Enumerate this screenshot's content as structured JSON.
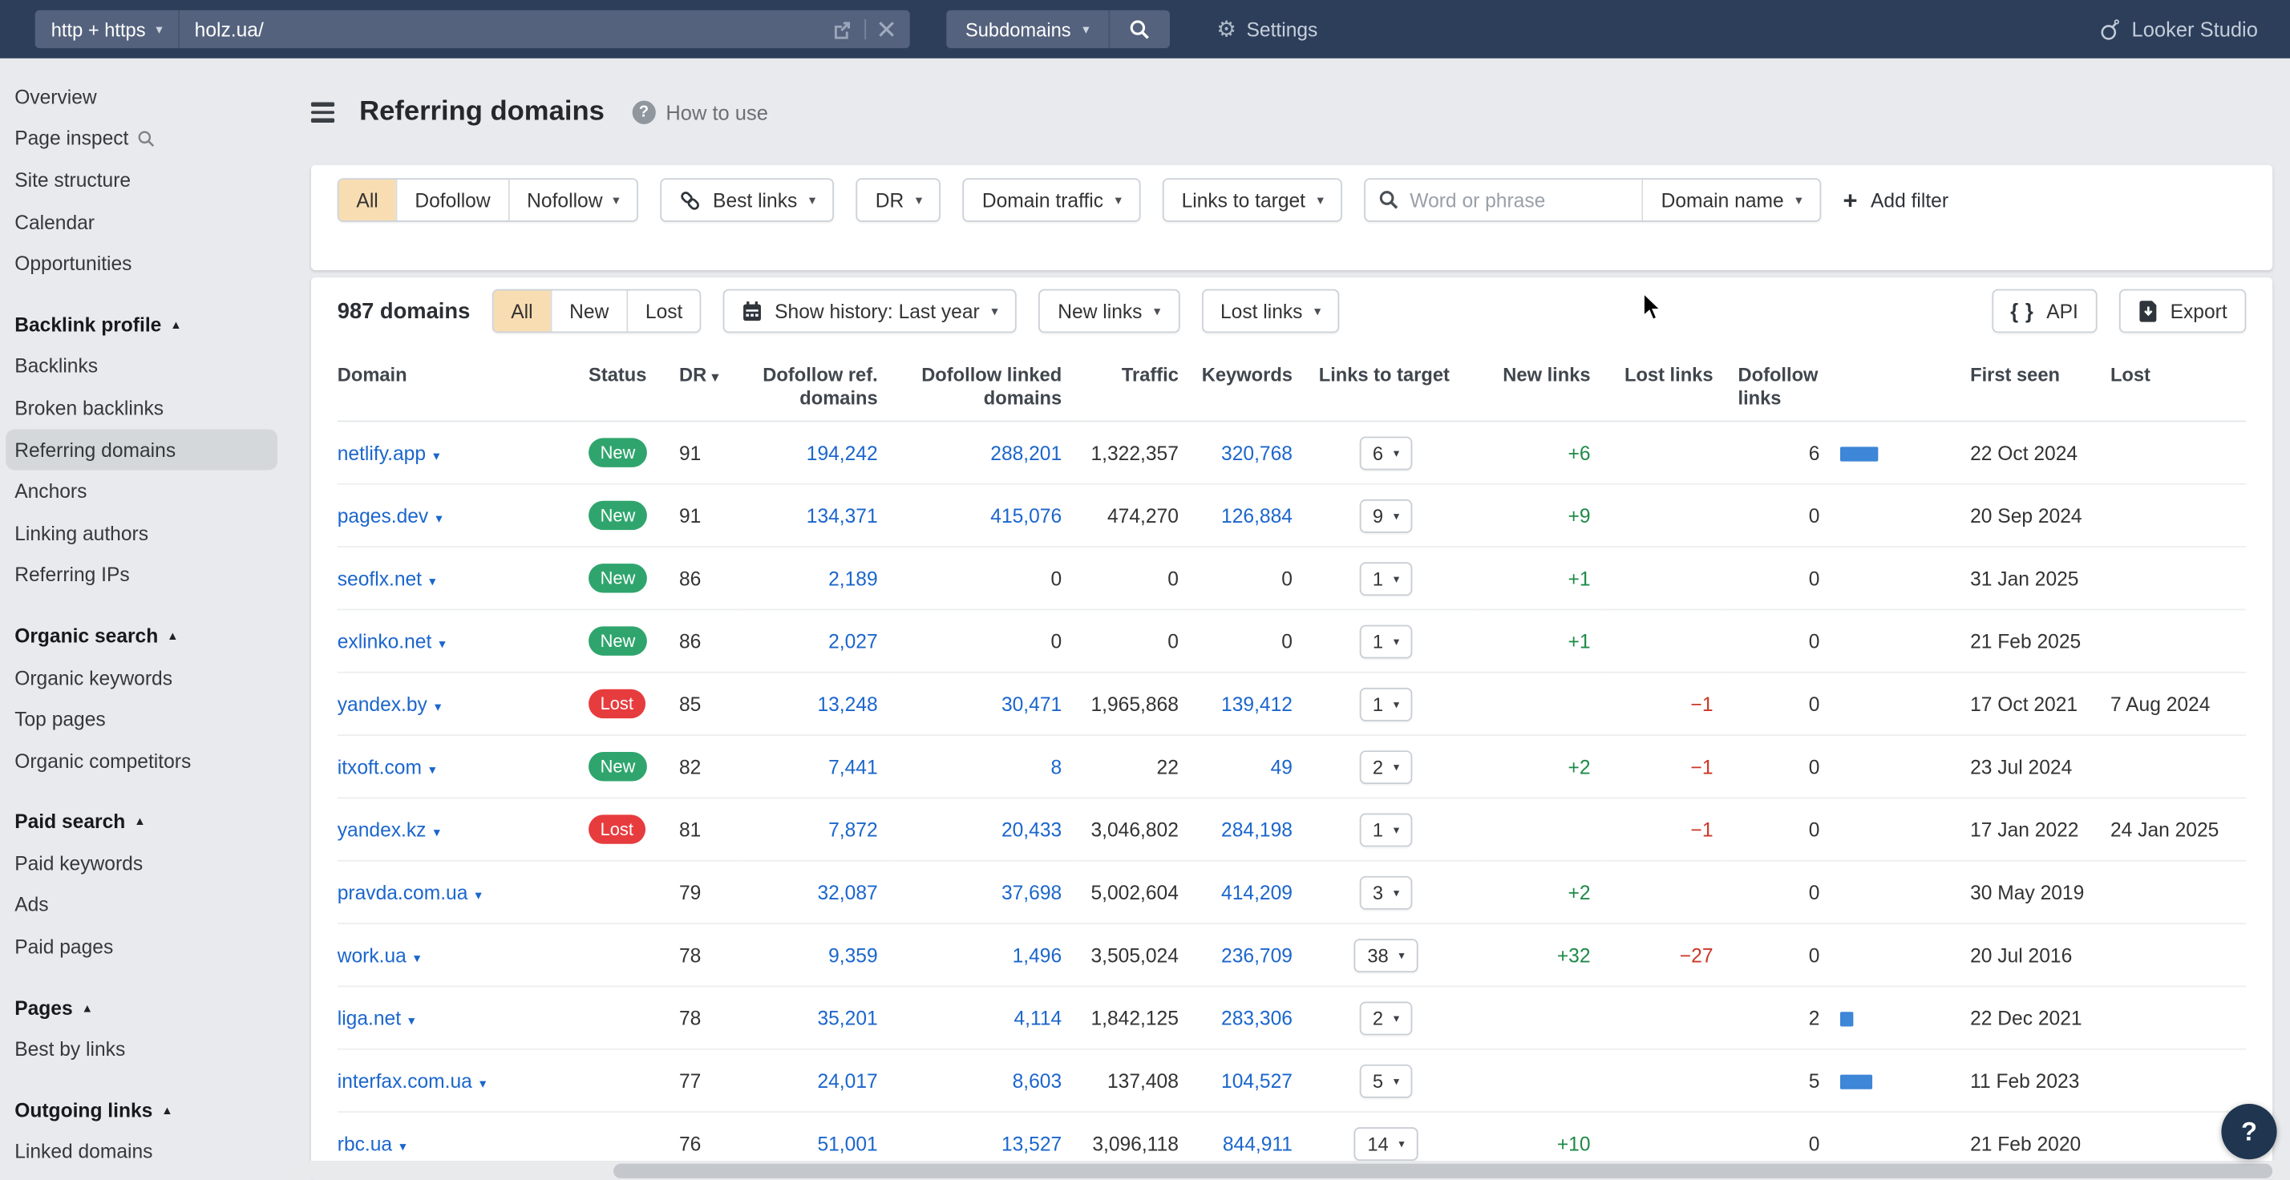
{
  "colors": {
    "accent_blue": "#1b66cc",
    "bar_blue": "#3d86d8",
    "badge_new": "#2fa56d",
    "badge_lost": "#e73c3e",
    "positive_green": "#1e8a47",
    "negative_red": "#cc3626",
    "selected_filter_bg": "#f9ddb2",
    "topbar_bg": "#2d3e5a"
  },
  "topbar": {
    "protocol": "http + https",
    "url": "holz.ua/",
    "scope": "Subdomains",
    "settings": "Settings",
    "brand": "Looker Studio"
  },
  "page": {
    "title": "Referring domains",
    "help": "How to use"
  },
  "sidebar": {
    "selected": "Referring domains",
    "sections": [
      {
        "header": null,
        "items": [
          {
            "label": "Overview"
          },
          {
            "label": "Page inspect",
            "icon": "search"
          },
          {
            "label": "Site structure"
          },
          {
            "label": "Calendar"
          },
          {
            "label": "Opportunities"
          }
        ]
      },
      {
        "header": "Backlink profile",
        "items": [
          {
            "label": "Backlinks"
          },
          {
            "label": "Broken backlinks"
          },
          {
            "label": "Referring domains"
          },
          {
            "label": "Anchors"
          },
          {
            "label": "Linking authors"
          },
          {
            "label": "Referring IPs"
          }
        ]
      },
      {
        "header": "Organic search",
        "items": [
          {
            "label": "Organic keywords"
          },
          {
            "label": "Top pages"
          },
          {
            "label": "Organic competitors"
          }
        ]
      },
      {
        "header": "Paid search",
        "items": [
          {
            "label": "Paid keywords"
          },
          {
            "label": "Ads"
          },
          {
            "label": "Paid pages"
          }
        ]
      },
      {
        "header": "Pages",
        "items": [
          {
            "label": "Best by links"
          }
        ]
      },
      {
        "header": "Outgoing links",
        "items": [
          {
            "label": "Linked domains"
          }
        ]
      }
    ]
  },
  "filters": {
    "scope": [
      {
        "label": "All",
        "selected": true
      },
      {
        "label": "Dofollow"
      },
      {
        "label": "Nofollow",
        "caret": true
      }
    ],
    "dropdowns": [
      {
        "label": "Best links",
        "icon": "link"
      },
      {
        "label": "DR"
      },
      {
        "label": "Domain traffic"
      },
      {
        "label": "Links to target"
      }
    ],
    "search_placeholder": "Word or phrase",
    "search_scope": "Domain name",
    "add_filter": "Add filter"
  },
  "toolbar": {
    "count": "987 domains",
    "status_tabs": [
      {
        "label": "All",
        "selected": true
      },
      {
        "label": "New"
      },
      {
        "label": "Lost"
      }
    ],
    "history_label": "Show history: Last year",
    "new_links_label": "New links",
    "lost_links_label": "Lost links",
    "api_label": "API",
    "export_label": "Export"
  },
  "table": {
    "columns": [
      "Domain",
      "Status",
      "DR",
      "Dofollow ref. domains",
      "Dofollow linked domains",
      "Traffic",
      "Keywords",
      "Links to target",
      "New links",
      "Lost links",
      "Dofollow links",
      "First seen",
      "Lost"
    ],
    "sort_column": "DR",
    "rows": [
      {
        "domain": "netlify.app",
        "status": "New",
        "dr": "91",
        "dofollow_ref_domains": "194,242",
        "dofollow_linked_domains": "288,201",
        "traffic": "1,322,357",
        "keywords": "320,768",
        "links_to_target": "6",
        "new_links": "+6",
        "lost_links": "",
        "dofollow_links": "6",
        "bar": 26,
        "first_seen": "22 Oct 2024",
        "lost": ""
      },
      {
        "domain": "pages.dev",
        "status": "New",
        "dr": "91",
        "dofollow_ref_domains": "134,371",
        "dofollow_linked_domains": "415,076",
        "traffic": "474,270",
        "keywords": "126,884",
        "links_to_target": "9",
        "new_links": "+9",
        "lost_links": "",
        "dofollow_links": "0",
        "bar": 0,
        "first_seen": "20 Sep 2024",
        "lost": ""
      },
      {
        "domain": "seoflx.net",
        "status": "New",
        "dr": "86",
        "dofollow_ref_domains": "2,189",
        "dofollow_linked_domains": "0",
        "traffic": "0",
        "keywords": "0",
        "links_to_target": "1",
        "new_links": "+1",
        "lost_links": "",
        "dofollow_links": "0",
        "bar": 0,
        "first_seen": "31 Jan 2025",
        "lost": ""
      },
      {
        "domain": "exlinko.net",
        "status": "New",
        "dr": "86",
        "dofollow_ref_domains": "2,027",
        "dofollow_linked_domains": "0",
        "traffic": "0",
        "keywords": "0",
        "links_to_target": "1",
        "new_links": "+1",
        "lost_links": "",
        "dofollow_links": "0",
        "bar": 0,
        "first_seen": "21 Feb 2025",
        "lost": ""
      },
      {
        "domain": "yandex.by",
        "status": "Lost",
        "dr": "85",
        "dofollow_ref_domains": "13,248",
        "dofollow_linked_domains": "30,471",
        "traffic": "1,965,868",
        "keywords": "139,412",
        "links_to_target": "1",
        "new_links": "",
        "lost_links": "−1",
        "dofollow_links": "0",
        "bar": 0,
        "first_seen": "17 Oct 2021",
        "lost": "7 Aug 2024"
      },
      {
        "domain": "itxoft.com",
        "status": "New",
        "dr": "82",
        "dofollow_ref_domains": "7,441",
        "dofollow_linked_domains": "8",
        "traffic": "22",
        "keywords": "49",
        "links_to_target": "2",
        "new_links": "+2",
        "lost_links": "−1",
        "dofollow_links": "0",
        "bar": 0,
        "first_seen": "23 Jul 2024",
        "lost": ""
      },
      {
        "domain": "yandex.kz",
        "status": "Lost",
        "dr": "81",
        "dofollow_ref_domains": "7,872",
        "dofollow_linked_domains": "20,433",
        "traffic": "3,046,802",
        "keywords": "284,198",
        "links_to_target": "1",
        "new_links": "",
        "lost_links": "−1",
        "dofollow_links": "0",
        "bar": 0,
        "first_seen": "17 Jan 2022",
        "lost": "24 Jan 2025"
      },
      {
        "domain": "pravda.com.ua",
        "status": "",
        "dr": "79",
        "dofollow_ref_domains": "32,087",
        "dofollow_linked_domains": "37,698",
        "traffic": "5,002,604",
        "keywords": "414,209",
        "links_to_target": "3",
        "new_links": "+2",
        "lost_links": "",
        "dofollow_links": "0",
        "bar": 0,
        "first_seen": "30 May 2019",
        "lost": ""
      },
      {
        "domain": "work.ua",
        "status": "",
        "dr": "78",
        "dofollow_ref_domains": "9,359",
        "dofollow_linked_domains": "1,496",
        "traffic": "3,505,024",
        "keywords": "236,709",
        "links_to_target": "38",
        "new_links": "+32",
        "lost_links": "−27",
        "dofollow_links": "0",
        "bar": 0,
        "first_seen": "20 Jul 2016",
        "lost": ""
      },
      {
        "domain": "liga.net",
        "status": "",
        "dr": "78",
        "dofollow_ref_domains": "35,201",
        "dofollow_linked_domains": "4,114",
        "traffic": "1,842,125",
        "keywords": "283,306",
        "links_to_target": "2",
        "new_links": "",
        "lost_links": "",
        "dofollow_links": "2",
        "bar": 9,
        "first_seen": "22 Dec 2021",
        "lost": ""
      },
      {
        "domain": "interfax.com.ua",
        "status": "",
        "dr": "77",
        "dofollow_ref_domains": "24,017",
        "dofollow_linked_domains": "8,603",
        "traffic": "137,408",
        "keywords": "104,527",
        "links_to_target": "5",
        "new_links": "",
        "lost_links": "",
        "dofollow_links": "5",
        "bar": 22,
        "first_seen": "11 Feb 2023",
        "lost": ""
      },
      {
        "domain": "rbc.ua",
        "status": "",
        "dr": "76",
        "dofollow_ref_domains": "51,001",
        "dofollow_linked_domains": "13,527",
        "traffic": "3,096,118",
        "keywords": "844,911",
        "links_to_target": "14",
        "new_links": "+10",
        "lost_links": "",
        "dofollow_links": "0",
        "bar": 0,
        "first_seen": "21 Feb 2020",
        "lost": ""
      }
    ]
  }
}
